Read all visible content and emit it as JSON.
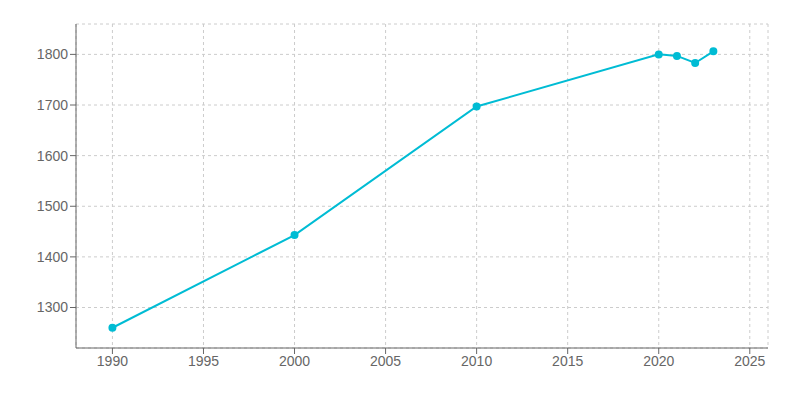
{
  "chart_data": {
    "type": "line",
    "x": [
      1990,
      2000,
      2010,
      2020,
      2021,
      2022,
      2023
    ],
    "values": [
      1260,
      1443,
      1697,
      1800,
      1797,
      1783,
      1806
    ],
    "color": "#00bcd4",
    "marker": "circle",
    "xlim": [
      1988,
      2026
    ],
    "xticks": [
      1990,
      1995,
      2000,
      2005,
      2010,
      2015,
      2020,
      2025
    ],
    "ylim": [
      1220,
      1860
    ],
    "yticks": [
      1300,
      1400,
      1500,
      1600,
      1700,
      1800
    ],
    "grid": true
  }
}
